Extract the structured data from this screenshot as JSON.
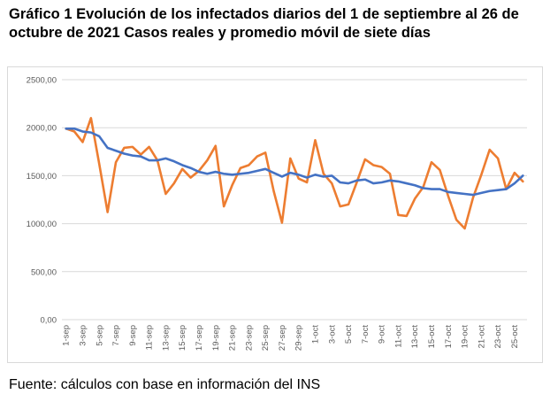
{
  "chart_data": {
    "type": "line",
    "title": "Gráfico 1 Evolución de los infectados diarios del 1 de septiembre al 26 de octubre de 2021 Casos reales y promedio móvil de siete días",
    "source": "Fuente: cálculos con base en información del INS",
    "categories": [
      "1-sep",
      null,
      "3-sep",
      null,
      "5-sep",
      null,
      "7-sep",
      null,
      "9-sep",
      null,
      "11-sep",
      null,
      "13-sep",
      null,
      "15-sep",
      null,
      "17-sep",
      null,
      "19-sep",
      null,
      "21-sep",
      null,
      "23-sep",
      null,
      "25-sep",
      null,
      "27-sep",
      null,
      "29-sep",
      null,
      "1-oct",
      null,
      "3-oct",
      null,
      "5-oct",
      null,
      "7-oct",
      null,
      "9-oct",
      null,
      "11-oct",
      null,
      "13-oct",
      null,
      "15-oct",
      null,
      "17-oct",
      null,
      "19-oct",
      null,
      "21-oct",
      null,
      "23-oct",
      null,
      "25-oct",
      null
    ],
    "series": [
      {
        "color": "#ed7d31",
        "values": [
          1990,
          1960,
          1850,
          2100,
          1620,
          1120,
          1640,
          1790,
          1800,
          1720,
          1800,
          1660,
          1310,
          1420,
          1570,
          1480,
          1550,
          1660,
          1810,
          1180,
          1400,
          1580,
          1610,
          1700,
          1740,
          1340,
          1010,
          1680,
          1470,
          1430,
          1870,
          1520,
          1420,
          1180,
          1200,
          1430,
          1670,
          1610,
          1590,
          1520,
          1090,
          1080,
          1260,
          1380,
          1640,
          1560,
          1290,
          1040,
          950,
          1270,
          1510,
          1770,
          1680,
          1360,
          1530,
          1440
        ]
      },
      {
        "color": "#4472c4",
        "values": [
          1990,
          1990,
          1960,
          1950,
          1910,
          1790,
          1760,
          1730,
          1710,
          1700,
          1660,
          1660,
          1680,
          1650,
          1610,
          1580,
          1540,
          1520,
          1540,
          1520,
          1510,
          1520,
          1530,
          1550,
          1570,
          1530,
          1490,
          1530,
          1510,
          1480,
          1510,
          1490,
          1500,
          1430,
          1420,
          1450,
          1460,
          1420,
          1430,
          1450,
          1440,
          1420,
          1400,
          1370,
          1360,
          1360,
          1330,
          1320,
          1310,
          1300,
          1320,
          1340,
          1350,
          1360,
          1420,
          1500
        ]
      }
    ],
    "ylim": [
      0,
      2500
    ],
    "yticks": [
      {
        "value": 0,
        "label": "0,00"
      },
      {
        "value": 500,
        "label": "500,00"
      },
      {
        "value": 1000,
        "label": "1000,00"
      },
      {
        "value": 1500,
        "label": "1500,00"
      },
      {
        "value": 2000,
        "label": "2000,00"
      },
      {
        "value": 2500,
        "label": "2500,00"
      }
    ],
    "grid": true
  }
}
